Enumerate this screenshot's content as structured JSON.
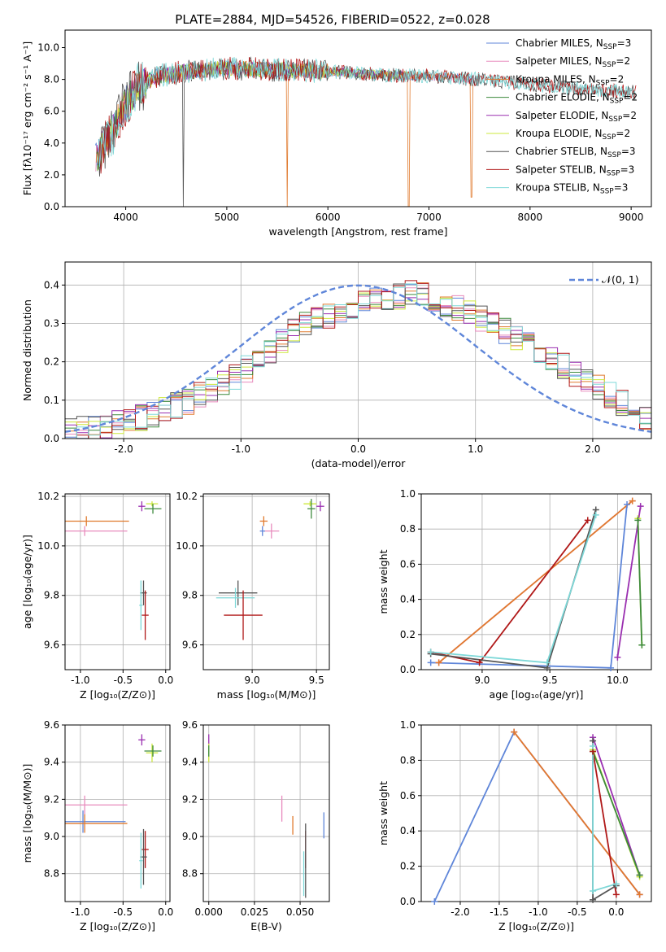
{
  "figure": {
    "title": "PLATE=2884, MJD=54526, FIBERID=0522, z=0.028"
  },
  "colors": {
    "Chabrier MILES": "#5f86d9",
    "Salpeter MILES": "#e88bbd",
    "Kroupa MILES": "#e07a2e",
    "Chabrier ELODIE": "#3d8a3d",
    "Salpeter ELODIE": "#9a2fb0",
    "Kroupa ELODIE": "#cde83d",
    "Chabrier STELIB": "#555555",
    "Salpeter STELIB": "#b01818",
    "Kroupa STELIB": "#7ed8d8",
    "normal": "#5f86d9"
  },
  "chart_data": [
    {
      "id": "spectrum",
      "type": "line",
      "title": "PLATE=2884, MJD=54526, FIBERID=0522, z=0.028",
      "xlabel": "wavelength [Angstrom, rest frame]",
      "ylabel": "Flux [fλ10⁻¹⁷ erg cm⁻² s⁻¹ A⁻¹]",
      "xlim": [
        3400,
        9200
      ],
      "ylim": [
        0,
        11.1
      ],
      "xticks": [
        4000,
        5000,
        6000,
        7000,
        8000,
        9000
      ],
      "yticks": [
        0,
        2,
        4,
        6,
        8,
        10
      ],
      "grid": false,
      "legend_position": "top-right",
      "legend": [
        {
          "name": "Chabrier MILES",
          "nssp": "3"
        },
        {
          "name": "Salpeter MILES",
          "nssp": "2"
        },
        {
          "name": "Kroupa MILES",
          "nssp": "2"
        },
        {
          "name": "Chabrier ELODIE",
          "nssp": "2"
        },
        {
          "name": "Salpeter ELODIE",
          "nssp": "2"
        },
        {
          "name": "Kroupa ELODIE",
          "nssp": "2"
        },
        {
          "name": "Chabrier STELIB",
          "nssp": "3"
        },
        {
          "name": "Salpeter STELIB",
          "nssp": "3"
        },
        {
          "name": "Kroupa STELIB",
          "nssp": "3"
        }
      ],
      "continuum": [
        [
          3700,
          3.0
        ],
        [
          3850,
          4.5
        ],
        [
          3950,
          6.0
        ],
        [
          4100,
          7.4
        ],
        [
          4300,
          8.2
        ],
        [
          4600,
          8.5
        ],
        [
          5000,
          8.7
        ],
        [
          5500,
          8.6
        ],
        [
          6000,
          8.5
        ],
        [
          6500,
          8.3
        ],
        [
          7000,
          8.2
        ],
        [
          7500,
          8.0
        ],
        [
          8000,
          7.7
        ],
        [
          8500,
          7.4
        ],
        [
          9000,
          7.2
        ]
      ],
      "dips": [
        {
          "series": "Kroupa MILES",
          "x": 5600,
          "y": 0
        },
        {
          "series": "Kroupa MILES",
          "x": 6800,
          "y": 0
        },
        {
          "series": "Kroupa MILES",
          "x": 7420,
          "y": 0.6
        },
        {
          "series": "Chabrier STELIB",
          "x": 3700,
          "y": 0
        },
        {
          "series": "Chabrier STELIB",
          "x": 4570,
          "y": 0
        }
      ]
    },
    {
      "id": "residuals",
      "type": "histogram",
      "xlabel": "(data-model)/error",
      "ylabel": "Normed distribution",
      "xlim": [
        -2.5,
        2.5
      ],
      "ylim": [
        0,
        0.46
      ],
      "xticks": [
        -2,
        -1,
        0,
        1,
        2
      ],
      "yticks": [
        0.0,
        0.1,
        0.2,
        0.3,
        0.4
      ],
      "grid": true,
      "legend_position": "top-right",
      "legend": [
        {
          "name": "𝒩(0, 1)"
        }
      ],
      "bin_width": 0.1,
      "envelope": [
        [
          -2.5,
          0.02
        ],
        [
          -2.0,
          0.04
        ],
        [
          -1.5,
          0.09
        ],
        [
          -1.0,
          0.17
        ],
        [
          -0.5,
          0.29
        ],
        [
          0.0,
          0.35
        ],
        [
          0.5,
          0.38
        ],
        [
          1.0,
          0.32
        ],
        [
          1.5,
          0.24
        ],
        [
          2.0,
          0.14
        ],
        [
          2.5,
          0.05
        ]
      ],
      "series": [
        "Chabrier MILES",
        "Salpeter MILES",
        "Kroupa MILES",
        "Chabrier ELODIE",
        "Salpeter ELODIE",
        "Kroupa ELODIE",
        "Chabrier STELIB",
        "Salpeter STELIB",
        "Kroupa STELIB"
      ]
    },
    {
      "id": "age-vs-Z",
      "type": "errorbar",
      "xlabel": "Z [log₁₀(Z/Z⊙)]",
      "ylabel": "age  [log₁₀(age/yr)]",
      "xlim": [
        -1.18,
        0.05
      ],
      "ylim": [
        9.5,
        10.21
      ],
      "xticks": [
        -1.0,
        -0.5,
        0.0
      ],
      "yticks": [
        9.6,
        9.8,
        10.0,
        10.2
      ],
      "grid": true,
      "points": [
        {
          "series": "Kroupa MILES",
          "x": -0.93,
          "y": 10.1,
          "xerr": 0.5,
          "yerr": 0.02
        },
        {
          "series": "Salpeter MILES",
          "x": -0.95,
          "y": 10.06,
          "xerr": 0.5,
          "yerr": 0.02
        },
        {
          "series": "Salpeter ELODIE",
          "x": -0.28,
          "y": 10.16,
          "xerr": 0.04,
          "yerr": 0.02
        },
        {
          "series": "Kroupa ELODIE",
          "x": -0.16,
          "y": 10.17,
          "xerr": 0.07,
          "yerr": 0.01
        },
        {
          "series": "Chabrier ELODIE",
          "x": -0.15,
          "y": 10.15,
          "xerr": 0.1,
          "yerr": 0.02
        },
        {
          "series": "Chabrier STELIB",
          "x": -0.26,
          "y": 9.81,
          "xerr": 0.04,
          "yerr": 0.05
        },
        {
          "series": "Kroupa STELIB",
          "x": -0.29,
          "y": 9.76,
          "xerr": 0.02,
          "yerr": 0.1
        },
        {
          "series": "Salpeter STELIB",
          "x": -0.24,
          "y": 9.72,
          "xerr": 0.04,
          "yerr": 0.1
        }
      ]
    },
    {
      "id": "age-vs-mass",
      "type": "errorbar",
      "xlabel": "mass [log₁₀(M/M⊙)]",
      "ylabel": "",
      "xlim": [
        8.62,
        9.6
      ],
      "ylim": [
        9.5,
        10.21
      ],
      "xticks": [
        9.0,
        9.5
      ],
      "yticks": [
        9.6,
        9.8,
        10.0,
        10.2
      ],
      "grid": true,
      "points": [
        {
          "series": "Kroupa MILES",
          "x": 9.09,
          "y": 10.1,
          "xerr": 0.03,
          "yerr": 0.02
        },
        {
          "series": "Salpeter MILES",
          "x": 9.15,
          "y": 10.06,
          "xerr": 0.06,
          "yerr": 0.03
        },
        {
          "series": "Chabrier MILES",
          "x": 9.08,
          "y": 10.06,
          "xerr": 0.02,
          "yerr": 0.02
        },
        {
          "series": "Salpeter ELODIE",
          "x": 9.53,
          "y": 10.16,
          "xerr": 0.03,
          "yerr": 0.02
        },
        {
          "series": "Kroupa ELODIE",
          "x": 9.45,
          "y": 10.17,
          "xerr": 0.05,
          "yerr": 0.01
        },
        {
          "series": "Chabrier ELODIE",
          "x": 9.46,
          "y": 10.15,
          "xerr": 0.03,
          "yerr": 0.04
        },
        {
          "series": "Chabrier STELIB",
          "x": 8.89,
          "y": 9.81,
          "xerr": 0.15,
          "yerr": 0.05
        },
        {
          "series": "Kroupa STELIB",
          "x": 8.87,
          "y": 9.79,
          "xerr": 0.15,
          "yerr": 0.04
        },
        {
          "series": "Salpeter STELIB",
          "x": 8.93,
          "y": 9.72,
          "xerr": 0.15,
          "yerr": 0.1
        }
      ]
    },
    {
      "id": "massweight-vs-age",
      "type": "line",
      "xlabel": "age  [log₁₀(age/yr)]",
      "ylabel": "mass weight",
      "xlim": [
        8.55,
        10.25
      ],
      "ylim": [
        0,
        1.0
      ],
      "xticks": [
        9.0,
        9.5,
        10.0
      ],
      "yticks": [
        0.0,
        0.2,
        0.4,
        0.6,
        0.8,
        1.0
      ],
      "grid": true,
      "series": [
        {
          "name": "Chabrier MILES",
          "x": [
            8.62,
            9.95,
            10.07
          ],
          "y": [
            0.04,
            0.01,
            0.94
          ]
        },
        {
          "name": "Salpeter MILES",
          "x": [
            8.68,
            10.11
          ],
          "y": [
            0.04,
            0.96
          ]
        },
        {
          "name": "Kroupa MILES",
          "x": [
            8.68,
            10.11
          ],
          "y": [
            0.04,
            0.96
          ]
        },
        {
          "name": "Salpeter ELODIE",
          "x": [
            10.0,
            10.17
          ],
          "y": [
            0.07,
            0.93
          ]
        },
        {
          "name": "Kroupa ELODIE",
          "x": [
            10.15,
            10.18
          ],
          "y": [
            0.86,
            0.14
          ]
        },
        {
          "name": "Chabrier ELODIE",
          "x": [
            10.15,
            10.18
          ],
          "y": [
            0.85,
            0.14
          ]
        },
        {
          "name": "Salpeter STELIB",
          "x": [
            8.62,
            8.98,
            9.78
          ],
          "y": [
            0.1,
            0.04,
            0.85
          ]
        },
        {
          "name": "Chabrier STELIB",
          "x": [
            8.62,
            9.48,
            9.84
          ],
          "y": [
            0.09,
            0.01,
            0.91
          ]
        },
        {
          "name": "Kroupa STELIB",
          "x": [
            8.62,
            9.48,
            9.84
          ],
          "y": [
            0.1,
            0.04,
            0.88
          ]
        }
      ]
    },
    {
      "id": "mass-vs-Z",
      "type": "errorbar",
      "xlabel": "Z [log₁₀(Z/Z⊙)]",
      "ylabel": "mass [log₁₀(M/M⊙)]",
      "xlim": [
        -1.18,
        0.05
      ],
      "ylim": [
        8.65,
        9.6
      ],
      "xticks": [
        -1.0,
        -0.5,
        0.0
      ],
      "yticks": [
        8.8,
        9.0,
        9.2,
        9.4,
        9.6
      ],
      "grid": true,
      "points": [
        {
          "series": "Salpeter MILES",
          "x": -0.95,
          "y": 9.17,
          "xerr": 0.5,
          "yerr": 0.05
        },
        {
          "series": "Chabrier MILES",
          "x": -0.97,
          "y": 9.08,
          "xerr": 0.5,
          "yerr": 0.06
        },
        {
          "series": "Kroupa MILES",
          "x": -0.95,
          "y": 9.07,
          "xerr": 0.5,
          "yerr": 0.05
        },
        {
          "series": "Salpeter ELODIE",
          "x": -0.28,
          "y": 9.52,
          "xerr": 0.04,
          "yerr": 0.03
        },
        {
          "series": "Kroupa ELODIE",
          "x": -0.16,
          "y": 9.45,
          "xerr": 0.07,
          "yerr": 0.05
        },
        {
          "series": "Chabrier ELODIE",
          "x": -0.15,
          "y": 9.46,
          "xerr": 0.1,
          "yerr": 0.03
        },
        {
          "series": "Salpeter STELIB",
          "x": -0.24,
          "y": 8.93,
          "xerr": 0.04,
          "yerr": 0.1
        },
        {
          "series": "Chabrier STELIB",
          "x": -0.26,
          "y": 8.89,
          "xerr": 0.04,
          "yerr": 0.15
        },
        {
          "series": "Kroupa STELIB",
          "x": -0.29,
          "y": 8.87,
          "xerr": 0.02,
          "yerr": 0.15
        }
      ]
    },
    {
      "id": "mass-vs-ebv",
      "type": "errorbar",
      "xlabel": "E(B-V)",
      "ylabel": "",
      "xlim": [
        -0.003,
        0.066
      ],
      "ylim": [
        8.65,
        9.6
      ],
      "xticks": [
        0.0,
        0.025,
        0.05
      ],
      "xticklabels": [
        "0.000",
        "0.025",
        "0.050"
      ],
      "yticks": [
        8.8,
        9.0,
        9.2,
        9.4,
        9.6
      ],
      "grid": true,
      "points": [
        {
          "series": "Salpeter ELODIE",
          "x": 0.0,
          "y": 9.52,
          "xerr": 0,
          "yerr": 0.03
        },
        {
          "series": "Kroupa ELODIE",
          "x": 0.0,
          "y": 9.45,
          "xerr": 0,
          "yerr": 0.05
        },
        {
          "series": "Chabrier ELODIE",
          "x": 0.0,
          "y": 9.46,
          "xerr": 0,
          "yerr": 0.03
        },
        {
          "series": "Salpeter MILES",
          "x": 0.04,
          "y": 9.15,
          "xerr": 0,
          "yerr": 0.07
        },
        {
          "series": "Kroupa MILES",
          "x": 0.046,
          "y": 9.06,
          "xerr": 0,
          "yerr": 0.05
        },
        {
          "series": "Salpeter STELIB",
          "x": 0.053,
          "y": 8.93,
          "xerr": 0,
          "yerr": 0.1
        },
        {
          "series": "Chabrier STELIB",
          "x": 0.053,
          "y": 8.87,
          "xerr": 0,
          "yerr": 0.2
        },
        {
          "series": "Kroupa STELIB",
          "x": 0.052,
          "y": 8.8,
          "xerr": 0,
          "yerr": 0.12
        },
        {
          "series": "Chabrier MILES",
          "x": 0.063,
          "y": 9.06,
          "xerr": 0,
          "yerr": 0.07
        }
      ]
    },
    {
      "id": "massweight-vs-Z",
      "type": "line",
      "xlabel": "Z [log₁₀(Z/Z⊙)]",
      "ylabel": "mass weight",
      "xlim": [
        -2.5,
        0.45
      ],
      "ylim": [
        0,
        1.0
      ],
      "xticks": [
        -2.0,
        -1.5,
        -1.0,
        -0.5,
        0.0
      ],
      "yticks": [
        0.0,
        0.2,
        0.4,
        0.6,
        0.8,
        1.0
      ],
      "grid": true,
      "series": [
        {
          "name": "Chabrier MILES",
          "x": [
            -2.33,
            -1.31,
            0.3
          ],
          "y": [
            0.0,
            0.96,
            0.04
          ]
        },
        {
          "name": "Salpeter MILES",
          "x": [
            -1.31,
            0.3
          ],
          "y": [
            0.96,
            0.04
          ]
        },
        {
          "name": "Kroupa MILES",
          "x": [
            -1.31,
            0.3
          ],
          "y": [
            0.96,
            0.04
          ]
        },
        {
          "name": "Salpeter ELODIE",
          "x": [
            -0.3,
            0.3
          ],
          "y": [
            0.93,
            0.15
          ]
        },
        {
          "name": "Kroupa ELODIE",
          "x": [
            -0.3,
            0.3
          ],
          "y": [
            0.86,
            0.14
          ]
        },
        {
          "name": "Chabrier ELODIE",
          "x": [
            -0.3,
            0.3
          ],
          "y": [
            0.85,
            0.15
          ]
        },
        {
          "name": "Salpeter STELIB",
          "x": [
            -0.3,
            0.0
          ],
          "y": [
            0.85,
            0.04
          ]
        },
        {
          "name": "Chabrier STELIB",
          "x": [
            -0.3,
            -0.3,
            0.0
          ],
          "y": [
            0.91,
            0.01,
            0.09
          ]
        },
        {
          "name": "Kroupa STELIB",
          "x": [
            -0.3,
            -0.3,
            0.0
          ],
          "y": [
            0.88,
            0.06,
            0.1
          ]
        }
      ]
    }
  ]
}
